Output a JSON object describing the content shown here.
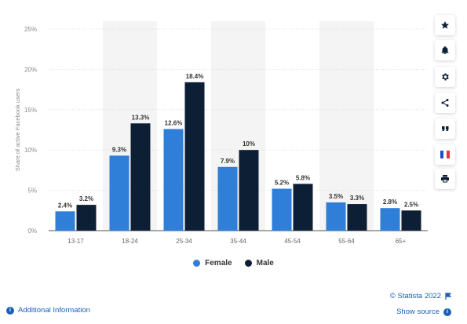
{
  "chart_data": {
    "type": "bar",
    "categories": [
      "13-17",
      "18-24",
      "25-34",
      "35-44",
      "45-54",
      "55-64",
      "65+"
    ],
    "series": [
      {
        "name": "Female",
        "values": [
          2.4,
          9.3,
          12.6,
          7.9,
          5.2,
          3.5,
          2.8
        ],
        "labels": [
          "2.4%",
          "9.3%",
          "12.6%",
          "7.9%",
          "5.2%",
          "3.5%",
          "2.8%"
        ],
        "color": "#2f7ed8"
      },
      {
        "name": "Male",
        "values": [
          3.2,
          13.3,
          18.4,
          10,
          5.8,
          3.3,
          2.5
        ],
        "labels": [
          "3.2%",
          "13.3%",
          "18.4%",
          "10%",
          "5.8%",
          "3.3%",
          "2.5%"
        ],
        "color": "#0d1f35"
      }
    ],
    "ylabel": "Share of active Facebook users",
    "xlabel": "",
    "ylim": [
      0,
      25
    ],
    "yticks": [
      0,
      5,
      10,
      15,
      20,
      25
    ],
    "ytick_labels": [
      "0%",
      "5%",
      "10%",
      "15%",
      "20%",
      "25%"
    ],
    "grid": true,
    "legend": "bottom-center"
  },
  "toolbar": {
    "buttons": [
      {
        "name": "favorite-button",
        "icon": "star-icon"
      },
      {
        "name": "notification-button",
        "icon": "bell-icon"
      },
      {
        "name": "settings-button",
        "icon": "gear-icon"
      },
      {
        "name": "share-button",
        "icon": "share-icon"
      },
      {
        "name": "cite-button",
        "icon": "quote-icon"
      },
      {
        "name": "language-button",
        "icon": "french-flag-icon"
      },
      {
        "name": "print-button",
        "icon": "printer-icon"
      }
    ]
  },
  "footer": {
    "additional_info": "Additional Information",
    "copyright": "© Statista 2022",
    "show_source": "Show source"
  },
  "colors": {
    "accent": "#1a5fb4",
    "band": "#f4f4f5"
  }
}
